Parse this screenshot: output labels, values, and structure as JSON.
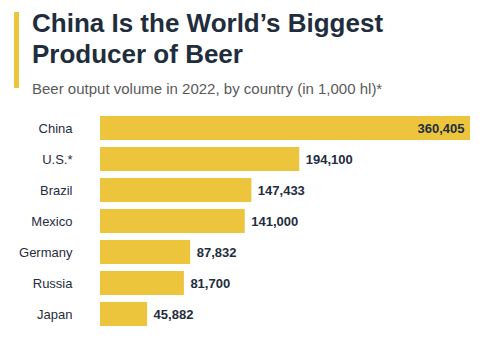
{
  "chart_data": {
    "type": "bar",
    "title": "China Is the World’s Biggest Producer of Beer",
    "subtitle": "Beer output volume in 2022, by country (in 1,000 hl)*",
    "categories": [
      "China",
      "U.S.*",
      "Brazil",
      "Mexico",
      "Germany",
      "Russia",
      "Japan"
    ],
    "values": [
      360405,
      194100,
      147433,
      141000,
      87832,
      81700,
      45882
    ],
    "value_labels": [
      "360,405",
      "194,100",
      "147,433",
      "141,000",
      "87,832",
      "81,700",
      "45,882"
    ],
    "color": "#ecc53d",
    "orientation": "horizontal",
    "xlim": [
      0,
      360405
    ],
    "data_labels": true,
    "tick_labels": "y"
  }
}
